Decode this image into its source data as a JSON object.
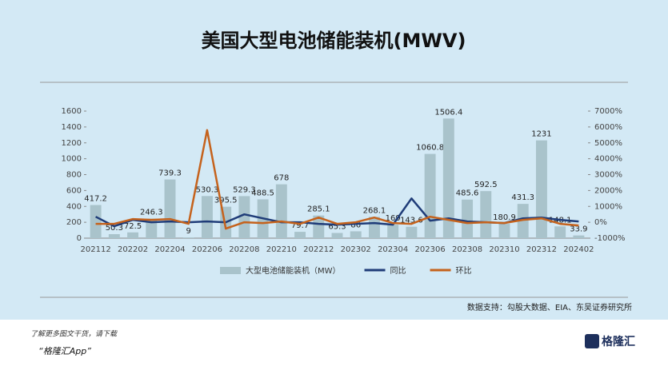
{
  "chart_data": {
    "type": "bar_line",
    "title": "美国大型电池储能装机(MWV)",
    "categories": [
      "202112",
      null,
      "202202",
      null,
      "202204",
      null,
      "202206",
      null,
      "202208",
      null,
      "202210",
      null,
      "202212",
      null,
      "202302",
      null,
      "202304",
      null,
      "202306",
      null,
      "202308",
      null,
      "202310",
      null,
      "202312",
      null,
      "202402"
    ],
    "series": [
      {
        "name": "大型电池储能装机（MW）",
        "type": "bar",
        "color": "#a9c3cb",
        "values": [
          417.2,
          50.3,
          72.5,
          246.3,
          739.3,
          9,
          530.3,
          395.5,
          529.3,
          488.5,
          678,
          79.7,
          285.1,
          65.3,
          86,
          268.1,
          169,
          143.6,
          1060.8,
          1506.4,
          485.6,
          592.5,
          180.9,
          431.3,
          1231,
          148.1,
          33.9
        ]
      },
      {
        "name": "同比",
        "type": "line",
        "axis": "y2",
        "color": "#1f3c78",
        "values": [
          350,
          -250,
          150,
          0,
          50,
          0,
          50,
          0,
          500,
          250,
          0,
          0,
          -100,
          -150,
          -100,
          -50,
          -150,
          1500,
          100,
          250,
          50,
          0,
          -50,
          250,
          300,
          150,
          50
        ]
      },
      {
        "name": "环比",
        "type": "line",
        "axis": "y2",
        "color": "#c5621c",
        "values": [
          -100,
          -100,
          200,
          150,
          200,
          -100,
          5800,
          -400,
          0,
          -50,
          50,
          -100,
          300,
          -100,
          0,
          300,
          -50,
          -100,
          350,
          150,
          -50,
          0,
          -50,
          150,
          250,
          -100,
          -200
        ]
      }
    ],
    "ylim": [
      0,
      1600
    ],
    "yticks": [
      0,
      200,
      400,
      600,
      800,
      1000,
      1200,
      1400,
      1600
    ],
    "y2lim": [
      -1000,
      7000
    ],
    "y2ticks": [
      {
        "value": -1000,
        "label": "-1000%"
      },
      {
        "value": 0,
        "label": "0%"
      },
      {
        "value": 1000,
        "label": "1000%"
      },
      {
        "value": 2000,
        "label": "2000%"
      },
      {
        "value": 3000,
        "label": "3000%"
      },
      {
        "value": 4000,
        "label": "4000%"
      },
      {
        "value": 5000,
        "label": "5000%"
      },
      {
        "value": 6000,
        "label": "6000%"
      },
      {
        "value": 7000,
        "label": "7000%"
      }
    ],
    "source": "数据支持：勾股大数据、EIA、东吴证券研究所"
  },
  "footer": {
    "promo": "了解更多图文干货，请下载",
    "app": "“格隆汇App”",
    "brand": "格隆汇"
  }
}
